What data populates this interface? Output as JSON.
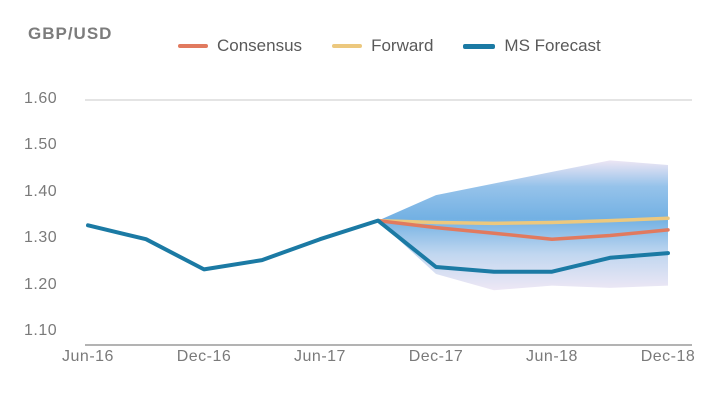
{
  "title": "GBP/USD",
  "legend": {
    "items": [
      {
        "label": "Consensus",
        "color": "#e17a5f"
      },
      {
        "label": "Forward",
        "color": "#ecc87e"
      },
      {
        "label": "MS Forecast",
        "color": "#1b7aa4"
      }
    ]
  },
  "chart_data": {
    "type": "line",
    "title": "GBP/USD",
    "x": [
      "Jun-16",
      "Sep-16",
      "Dec-16",
      "Mar-17",
      "Jun-17",
      "Sep-17",
      "Dec-17",
      "Mar-18",
      "Jun-18",
      "Sep-18",
      "Dec-18"
    ],
    "x_tick_labels": [
      "Jun-16",
      "Dec-16",
      "Jun-17",
      "Dec-17",
      "Jun-18",
      "Dec-18"
    ],
    "x_tick_indices": [
      0,
      2,
      4,
      6,
      8,
      10
    ],
    "y_tick_labels": [
      "1.10",
      "1.20",
      "1.30",
      "1.40",
      "1.50",
      "1.60"
    ],
    "ylim": [
      1.1,
      1.6
    ],
    "grid": false,
    "legend_position": "top",
    "series": [
      {
        "name": "Consensus",
        "color": "#e17a5f",
        "width": 3.5,
        "values": [
          null,
          null,
          null,
          null,
          null,
          1.34,
          1.325,
          1.313,
          1.3,
          1.308,
          1.32
        ]
      },
      {
        "name": "Forward",
        "color": "#ecc87e",
        "width": 3.5,
        "values": [
          null,
          null,
          null,
          null,
          null,
          1.34,
          1.336,
          1.334,
          1.336,
          1.34,
          1.345
        ]
      },
      {
        "name": "MS Forecast",
        "color": "#1b7aa4",
        "width": 4,
        "values": [
          1.33,
          1.3,
          1.235,
          1.255,
          1.3,
          1.34,
          1.24,
          1.23,
          1.23,
          1.26,
          1.27
        ]
      }
    ],
    "band": {
      "start_index": 5,
      "upper": [
        1.34,
        1.395,
        1.42,
        1.445,
        1.47,
        1.46
      ],
      "lower": [
        1.34,
        1.225,
        1.19,
        1.2,
        1.195,
        1.2
      ],
      "core_color": "#63a8e0",
      "edge_color": "#ece5f4"
    }
  }
}
